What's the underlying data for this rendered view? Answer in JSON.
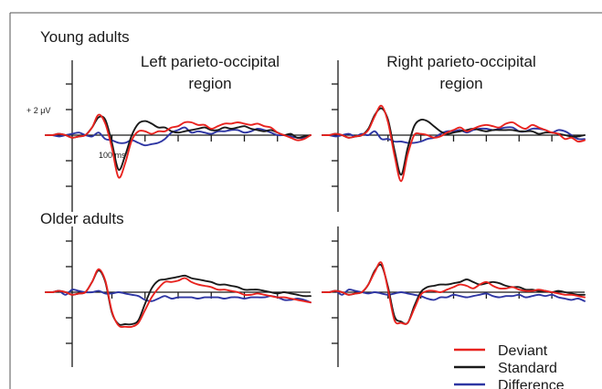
{
  "groups": [
    "Young adults",
    "Older adults"
  ],
  "regions": [
    "Left parieto-occipital region",
    "Right parieto-occipital region"
  ],
  "region_lines": [
    [
      "Left parieto-occipital",
      "region"
    ],
    [
      "Right parieto-occipital",
      "region"
    ]
  ],
  "scale": {
    "amplitude_label": "+ 2 μV",
    "time_label": "100 ms"
  },
  "legend": {
    "title": "",
    "items": [
      "Deviant",
      "Standard",
      "Difference"
    ]
  },
  "colors": {
    "deviant": "#e8231f",
    "standard": "#1a1a1a",
    "difference": "#2e36a3",
    "axis": "#1a1a1a",
    "frame": "#555555"
  },
  "chart_data": [
    {
      "type": "line",
      "panel": "Young adults — Left parieto-occipital region",
      "xlim": [
        -100,
        700
      ],
      "ylim": [
        -3.5,
        4
      ],
      "x_step_ms": 20,
      "series": [
        {
          "name": "Deviant",
          "values": [
            0,
            0,
            0.1,
            0,
            -0.2,
            -0.1,
            0,
            0.6,
            1.6,
            0.9,
            -1,
            -3.3,
            -2.2,
            -0.4,
            0.3,
            0.3,
            0.1,
            0.3,
            0.3,
            0.6,
            0.7,
            1,
            1,
            0.8,
            0.8,
            0.5,
            0.7,
            0.9,
            0.9,
            1,
            0.9,
            0.8,
            0.9,
            0.7,
            0.6,
            0.2,
            0,
            -0.2,
            -0.4,
            -0.3,
            0
          ]
        },
        {
          "name": "Standard",
          "values": [
            0,
            0,
            0.1,
            0,
            -0.2,
            -0.1,
            0,
            0.6,
            1.4,
            1.2,
            -0.6,
            -2.7,
            -1.6,
            0,
            0.9,
            1.1,
            0.9,
            0.6,
            0.6,
            0.3,
            0.2,
            0.3,
            0.4,
            0.5,
            0.6,
            0.4,
            0.4,
            0.6,
            0.5,
            0.6,
            0.7,
            0.5,
            0.4,
            0.3,
            0.4,
            0.2,
            0,
            0.1,
            -0.2,
            -0.1,
            0
          ]
        },
        {
          "name": "Difference",
          "values": [
            0,
            0,
            -0.1,
            0,
            0.1,
            0.2,
            0,
            -0.1,
            0.2,
            -0.3,
            -0.4,
            -0.6,
            -0.6,
            -0.4,
            -0.6,
            -0.8,
            -0.7,
            -0.6,
            -0.3,
            0.2,
            0.4,
            0.6,
            0.2,
            0.3,
            0.2,
            0.1,
            0.3,
            0.3,
            0.4,
            0.4,
            0.2,
            0.3,
            0.5,
            0.4,
            0.2,
            0,
            0,
            -0.1,
            -0.2,
            -0.2,
            0
          ]
        }
      ]
    },
    {
      "type": "line",
      "panel": "Young adults — Right parieto-occipital region",
      "xlim": [
        -100,
        700
      ],
      "ylim": [
        -3.5,
        4
      ],
      "x_step_ms": 20,
      "series": [
        {
          "name": "Deviant",
          "values": [
            0,
            0,
            0.1,
            0,
            -0.2,
            -0.1,
            0,
            0.4,
            1.5,
            2.3,
            1,
            -1.6,
            -3.6,
            -1.5,
            0,
            0.1,
            0,
            -0.2,
            -0.1,
            0.2,
            0.4,
            0.6,
            0.3,
            0.5,
            0.7,
            0.8,
            0.7,
            0.6,
            0.9,
            1,
            0.7,
            0.5,
            0.8,
            0.6,
            0.4,
            0.2,
            0.1,
            -0.3,
            -0.2,
            -0.5,
            -0.4
          ]
        },
        {
          "name": "Standard",
          "values": [
            0,
            0,
            0.1,
            0,
            -0.2,
            -0.1,
            0,
            0.5,
            1.6,
            2.1,
            1.2,
            -1.2,
            -3.1,
            -1,
            0.7,
            1.2,
            1.1,
            0.7,
            0.3,
            0.1,
            0.2,
            0.3,
            0.4,
            0.5,
            0.4,
            0.3,
            0.4,
            0.4,
            0.4,
            0.4,
            0.3,
            0.3,
            0.3,
            0.1,
            0.2,
            0.2,
            0.1,
            0,
            -0.1,
            -0.1,
            0
          ]
        },
        {
          "name": "Difference",
          "values": [
            0,
            0,
            -0.1,
            0,
            0.1,
            -0.1,
            0.1,
            0,
            0.3,
            -0.3,
            -0.3,
            -0.5,
            -0.5,
            -0.6,
            -0.6,
            -0.5,
            -0.3,
            -0.2,
            0.1,
            0.3,
            0.3,
            0.4,
            0.2,
            0.4,
            0.5,
            0.5,
            0.4,
            0.5,
            0.6,
            0.6,
            0.3,
            0.3,
            0.5,
            0.5,
            0.4,
            0.2,
            0.4,
            0.3,
            0,
            -0.3,
            -0.3
          ]
        }
      ]
    },
    {
      "type": "line",
      "panel": "Older adults — Left parieto-occipital region",
      "xlim": [
        -100,
        700
      ],
      "ylim": [
        -3,
        3.3
      ],
      "x_step_ms": 20,
      "series": [
        {
          "name": "Deviant",
          "values": [
            0,
            0,
            0.1,
            0,
            -0.2,
            -0.1,
            0,
            0.8,
            1.8,
            0.9,
            -1.5,
            -2.6,
            -2.7,
            -2.7,
            -2.4,
            -1.4,
            -0.4,
            0.3,
            0.8,
            0.8,
            0.9,
            1.1,
            0.8,
            0.6,
            0.5,
            0.4,
            0.2,
            0.2,
            0.1,
            0,
            -0.2,
            -0.2,
            -0.1,
            -0.2,
            -0.3,
            -0.4,
            -0.4,
            -0.5,
            -0.6,
            -0.7,
            -0.8
          ]
        },
        {
          "name": "Standard",
          "values": [
            0,
            0,
            0.1,
            0,
            -0.2,
            -0.1,
            0,
            0.8,
            1.7,
            0.8,
            -1.6,
            -2.5,
            -2.5,
            -2.5,
            -2.2,
            -0.9,
            0.3,
            0.9,
            1,
            1.1,
            1.2,
            1.3,
            1.1,
            1,
            0.9,
            0.8,
            0.6,
            0.6,
            0.5,
            0.4,
            0.2,
            0.2,
            0.2,
            0.1,
            0,
            -0.1,
            0,
            -0.1,
            -0.2,
            -0.3,
            -0.3
          ]
        },
        {
          "name": "Difference",
          "values": [
            0,
            0,
            0.1,
            -0.2,
            0.2,
            0.1,
            0,
            0,
            0.1,
            -0.1,
            -0.1,
            0,
            -0.1,
            -0.2,
            -0.3,
            -0.6,
            -0.7,
            -0.5,
            -0.3,
            -0.5,
            -0.4,
            -0.4,
            -0.4,
            -0.5,
            -0.4,
            -0.4,
            -0.4,
            -0.5,
            -0.4,
            -0.4,
            -0.5,
            -0.4,
            -0.4,
            -0.4,
            -0.3,
            -0.4,
            -0.6,
            -0.6,
            -0.5,
            -0.6,
            -0.8
          ]
        }
      ]
    },
    {
      "type": "line",
      "panel": "Older adults — Right parieto-occipital region",
      "xlim": [
        -100,
        700
      ],
      "ylim": [
        -3,
        3.3
      ],
      "x_step_ms": 20,
      "series": [
        {
          "name": "Deviant",
          "values": [
            0,
            0,
            0.1,
            0,
            -0.2,
            -0.1,
            0,
            0.6,
            1.6,
            2.3,
            0.2,
            -2.2,
            -2.4,
            -2.4,
            -1.3,
            -0.2,
            0.1,
            0.1,
            0,
            0.2,
            0.4,
            0.6,
            0.5,
            0.3,
            0.6,
            0.8,
            0.5,
            0.3,
            0.3,
            0.4,
            0.2,
            0.1,
            0.1,
            0.2,
            0.1,
            0,
            -0.1,
            -0.2,
            -0.2,
            -0.3,
            -0.4
          ]
        },
        {
          "name": "Standard",
          "values": [
            0,
            0,
            0.1,
            0,
            -0.2,
            -0.1,
            0,
            0.6,
            1.7,
            2.1,
            0.4,
            -1.9,
            -2.3,
            -2.4,
            -1.1,
            0,
            0.4,
            0.5,
            0.6,
            0.6,
            0.7,
            0.8,
            1,
            0.8,
            0.6,
            0.7,
            0.8,
            0.7,
            0.5,
            0.4,
            0.4,
            0.2,
            0.2,
            0.1,
            0.1,
            0,
            0.1,
            0,
            -0.1,
            -0.2,
            -0.2
          ]
        },
        {
          "name": "Difference",
          "values": [
            0,
            0,
            0.1,
            -0.2,
            0.2,
            0.1,
            0,
            -0.1,
            0,
            -0.1,
            -0.2,
            -0.1,
            0,
            -0.1,
            -0.2,
            -0.3,
            -0.5,
            -0.6,
            -0.4,
            -0.4,
            -0.2,
            -0.3,
            -0.4,
            -0.3,
            -0.2,
            -0.1,
            -0.3,
            -0.4,
            -0.3,
            -0.3,
            -0.2,
            -0.4,
            -0.3,
            -0.2,
            -0.3,
            -0.2,
            -0.4,
            -0.5,
            -0.6,
            -0.5,
            -0.7
          ]
        }
      ]
    }
  ]
}
